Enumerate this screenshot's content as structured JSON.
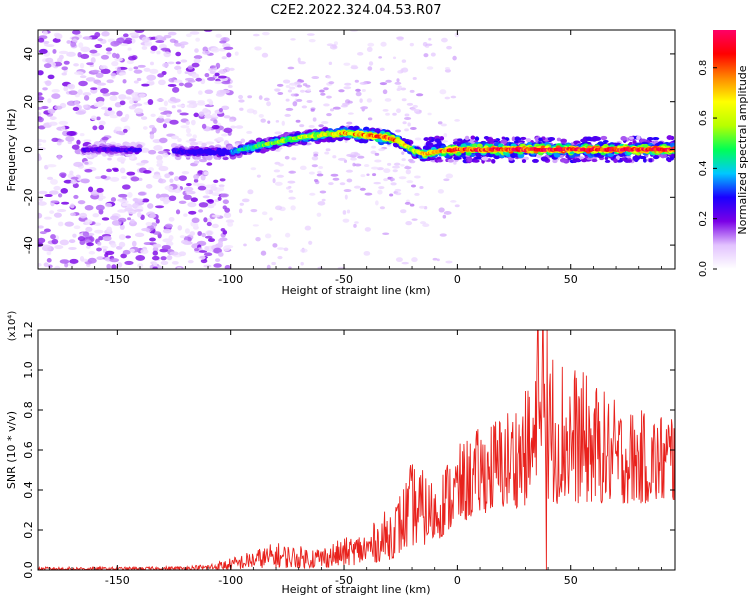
{
  "title": "C2E2.2022.324.04.53.R07",
  "chart_data": [
    {
      "type": "heatmap",
      "xlabel": "Height of straight line (km)",
      "ylabel": "Frequency (Hz)",
      "xlim": [
        -185,
        96
      ],
      "ylim": [
        -50,
        50
      ],
      "xticks": [
        -150,
        -100,
        -50,
        0,
        50
      ],
      "yticks": [
        -40,
        -20,
        0,
        20,
        40
      ],
      "colorbar": {
        "label": "Normalized spectral amplitude",
        "range": [
          0,
          0.95
        ],
        "ticks": [
          0.0,
          0.2,
          0.4,
          0.6,
          0.8
        ],
        "colors": [
          "#ffffff",
          "#e2c2ff",
          "#7a00e6",
          "#1a00ff",
          "#00c8ff",
          "#00ff55",
          "#b8ff00",
          "#ffff00",
          "#ff8800",
          "#ff0000",
          "#ff0066"
        ]
      },
      "signal_track": {
        "heights_km": [
          -165,
          -150,
          -120,
          -100,
          -90,
          -80,
          -70,
          -60,
          -50,
          -40,
          -30,
          -25,
          -20,
          -15,
          -10,
          0,
          20,
          50,
          95
        ],
        "frequency_hz": [
          0,
          0,
          -1,
          -1,
          1,
          3,
          5,
          6,
          7,
          6,
          5,
          3,
          0,
          -2,
          -1,
          0,
          0,
          0,
          0
        ],
        "peak_amplitude": [
          0.25,
          0.25,
          0.3,
          0.4,
          0.5,
          0.55,
          0.6,
          0.65,
          0.75,
          0.8,
          0.9,
          0.75,
          0.6,
          0.7,
          0.8,
          0.9,
          0.95,
          0.95,
          0.95
        ]
      },
      "noise_region_km": [
        -185,
        -100
      ]
    },
    {
      "type": "line",
      "xlabel": "Height of straight line (km)",
      "ylabel": "SNR (10 * v/v)",
      "yunit": "(x10⁴)",
      "xlim": [
        -185,
        96
      ],
      "ylim": [
        0,
        1.2
      ],
      "xticks": [
        -150,
        -100,
        -50,
        0,
        50
      ],
      "yticks": [
        0.0,
        0.2,
        0.4,
        0.6,
        0.8,
        1.0,
        1.2
      ],
      "series_color": "#e8211c",
      "series": [
        {
          "x": [
            -185,
            -160,
            -140,
            -120,
            -110,
            -100,
            -90,
            -80,
            -70,
            -60,
            -50,
            -40,
            -30,
            -25,
            -20,
            -15,
            -10,
            -5,
            0,
            10,
            20,
            30,
            40,
            50,
            60,
            70,
            80,
            90,
            95
          ],
          "y_envelope": [
            0.015,
            0.015,
            0.015,
            0.02,
            0.03,
            0.06,
            0.1,
            0.14,
            0.12,
            0.12,
            0.16,
            0.2,
            0.32,
            0.4,
            0.55,
            0.5,
            0.45,
            0.55,
            0.62,
            0.72,
            0.8,
            0.9,
            1.15,
            1.05,
            0.95,
            0.85,
            0.8,
            0.8,
            0.85
          ],
          "y_baseline": [
            0.0,
            0.0,
            0.0,
            0.0,
            0.0,
            0.0,
            0.01,
            0.01,
            0.01,
            0.01,
            0.02,
            0.03,
            0.05,
            0.08,
            0.12,
            0.12,
            0.14,
            0.18,
            0.22,
            0.28,
            0.3,
            0.32,
            0.33,
            0.33,
            0.33,
            0.33,
            0.33,
            0.33,
            0.33
          ]
        }
      ]
    }
  ]
}
